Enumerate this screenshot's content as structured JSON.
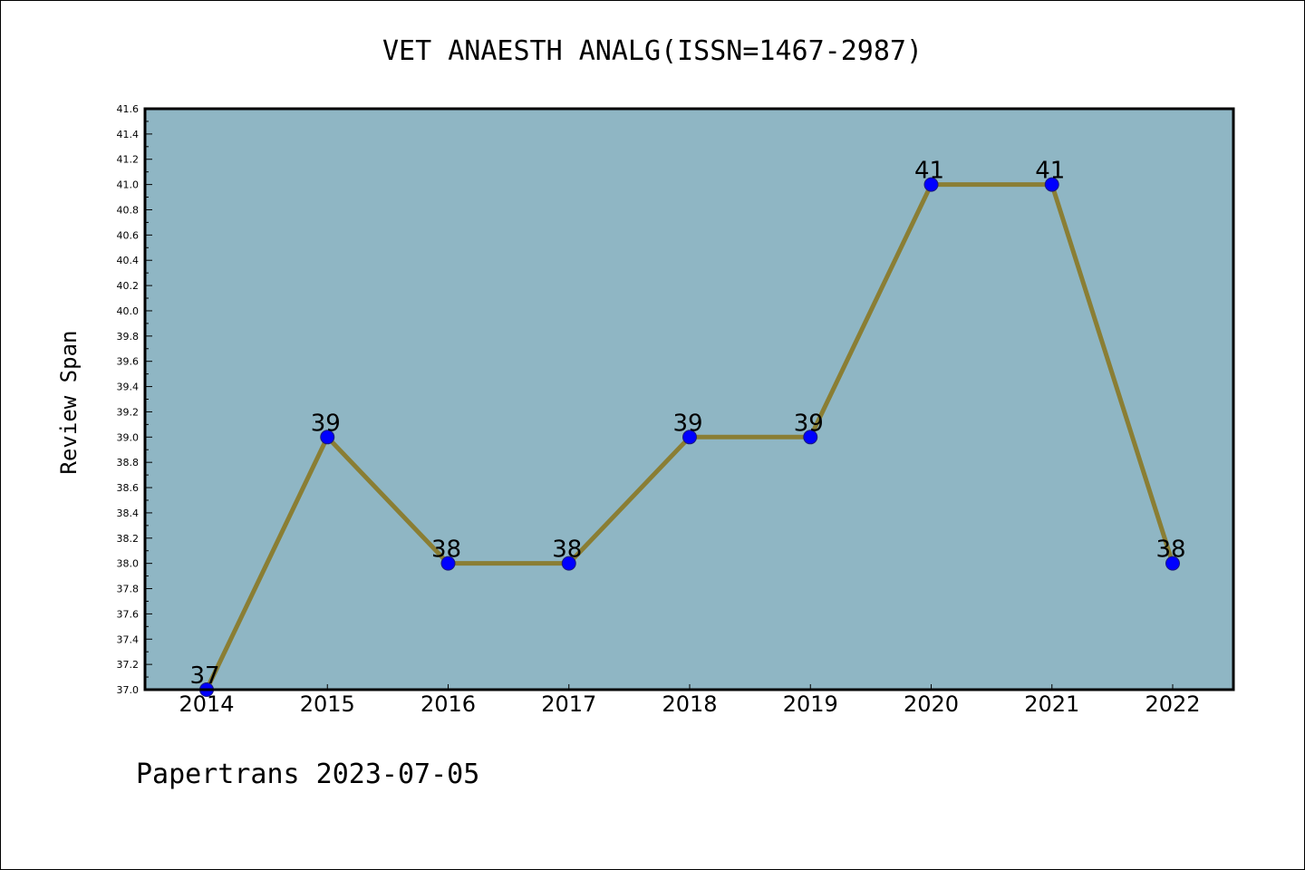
{
  "chart_data": {
    "type": "line",
    "title": "VET ANAESTH ANALG(ISSN=1467-2987)",
    "xlabel": "",
    "ylabel": "Review Span",
    "categories": [
      "2014",
      "2015",
      "2016",
      "2017",
      "2018",
      "2019",
      "2020",
      "2021",
      "2022"
    ],
    "series": [
      {
        "values": [
          37,
          39,
          38,
          38,
          39,
          39,
          41,
          41,
          38
        ]
      }
    ],
    "data_labels": [
      "37",
      "39",
      "38",
      "38",
      "39",
      "39",
      "41",
      "41",
      "38"
    ],
    "ylim": [
      37.0,
      41.6
    ],
    "yticks": [
      "37.0",
      "37.2",
      "37.4",
      "37.6",
      "37.8",
      "38.0",
      "38.2",
      "38.4",
      "38.6",
      "38.8",
      "39.0",
      "39.2",
      "39.4",
      "39.6",
      "39.8",
      "40.0",
      "40.2",
      "40.4",
      "40.6",
      "40.8",
      "41.0",
      "41.2",
      "41.4",
      "41.6"
    ],
    "grid": false,
    "legend": "none",
    "colors": {
      "plot_background": "#8fb6c4",
      "line": "#8a7e34",
      "marker": "#0000ff",
      "page_background": "#ffffff"
    }
  },
  "footer": "Papertrans 2023-07-05"
}
